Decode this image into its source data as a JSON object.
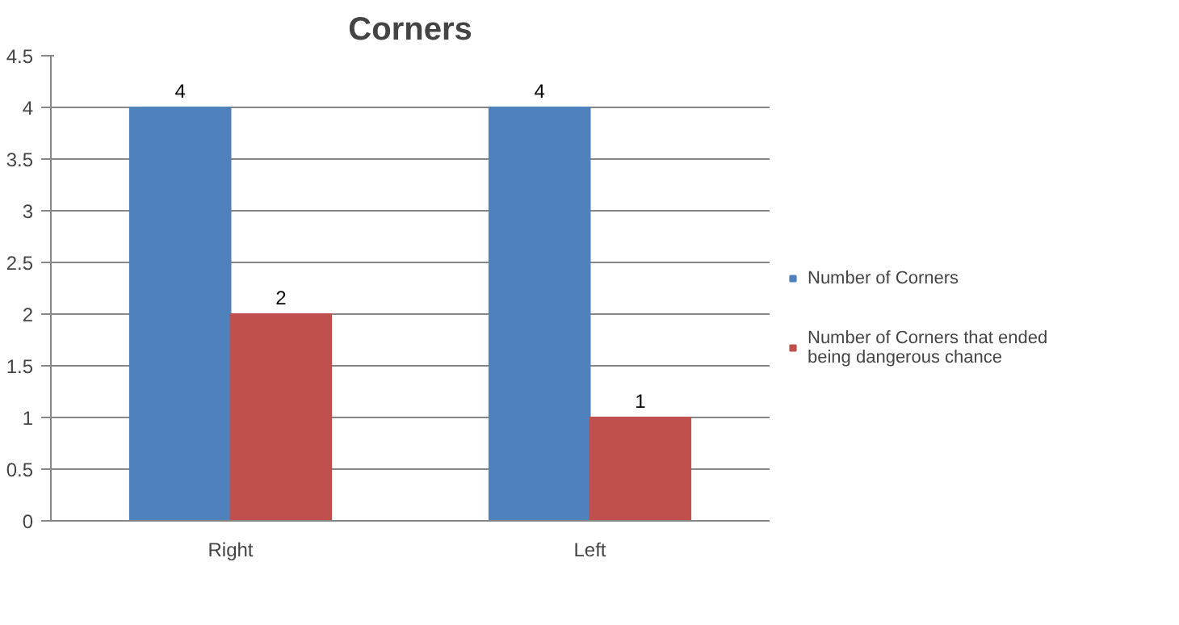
{
  "chart_data": {
    "type": "bar",
    "title": "Corners",
    "categories": [
      "Right",
      "Left"
    ],
    "series": [
      {
        "name": "Number of Corners",
        "color": "#4f81bd",
        "values": [
          4,
          4
        ]
      },
      {
        "name": "Number of Corners that ended being dangerous chance",
        "color": "#c0504d",
        "values": [
          2,
          1
        ]
      }
    ],
    "ylim": [
      0,
      4.5
    ],
    "yticks": [
      0,
      0.5,
      1,
      1.5,
      2,
      2.5,
      3,
      3.5,
      4,
      4.5
    ],
    "grid": "y",
    "legend": "right",
    "data_labels": true
  }
}
